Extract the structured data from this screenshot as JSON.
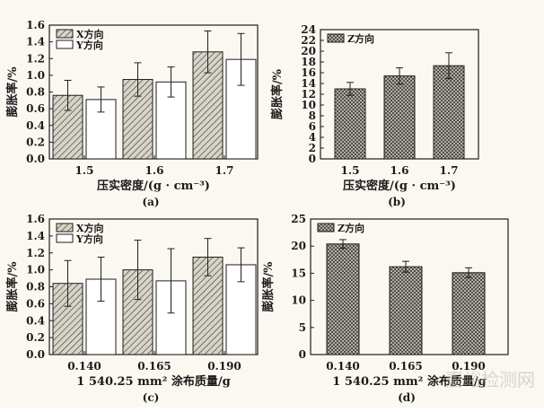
{
  "chart_data": [
    {
      "id": "a",
      "type": "bar",
      "panel_label": "(a)",
      "categories": [
        "1.5",
        "1.6",
        "1.7"
      ],
      "series": [
        {
          "name": "X方向",
          "values": [
            0.76,
            0.95,
            1.28
          ],
          "errors": [
            0.18,
            0.2,
            0.25
          ],
          "pattern": "hatch"
        },
        {
          "name": "Y方向",
          "values": [
            0.71,
            0.92,
            1.19
          ],
          "errors": [
            0.15,
            0.18,
            0.31
          ],
          "pattern": "blank"
        }
      ],
      "xlabel": "压实密度/(g · cm⁻³)",
      "ylabel": "膨胀率/%",
      "ylim": [
        0,
        1.6
      ],
      "yticks": [
        "0.0",
        "0.2",
        "0.4",
        "0.6",
        "0.8",
        "1.0",
        "1.2",
        "1.4",
        "1.6"
      ],
      "legend_position": "top-left",
      "grid": false
    },
    {
      "id": "b",
      "type": "bar",
      "panel_label": "(b)",
      "categories": [
        "1.5",
        "1.6",
        "1.7"
      ],
      "series": [
        {
          "name": "Z方向",
          "values": [
            13.0,
            15.4,
            17.3
          ],
          "errors": [
            1.2,
            1.5,
            2.4
          ],
          "pattern": "crosshatch"
        }
      ],
      "xlabel": "压实密度/(g · cm⁻³)",
      "ylabel": "膨胀率/%",
      "ylim": [
        0,
        24
      ],
      "yticks": [
        "0",
        "2",
        "4",
        "6",
        "8",
        "10",
        "12",
        "14",
        "16",
        "18",
        "20",
        "22",
        "24"
      ],
      "legend_position": "top-left",
      "grid": false
    },
    {
      "id": "c",
      "type": "bar",
      "panel_label": "(c)",
      "categories": [
        "0.140",
        "0.165",
        "0.190"
      ],
      "series": [
        {
          "name": "X方向",
          "values": [
            0.84,
            1.0,
            1.15
          ],
          "errors": [
            0.27,
            0.35,
            0.22
          ],
          "pattern": "hatch"
        },
        {
          "name": "Y方向",
          "values": [
            0.89,
            0.87,
            1.06
          ],
          "errors": [
            0.26,
            0.38,
            0.2
          ],
          "pattern": "blank"
        }
      ],
      "xlabel": "1 540.25 mm² 涂布质量/g",
      "ylabel": "膨胀率/%",
      "ylim": [
        0,
        1.6
      ],
      "yticks": [
        "0.0",
        "0.2",
        "0.4",
        "0.6",
        "0.8",
        "1.0",
        "1.2",
        "1.4",
        "1.6"
      ],
      "legend_position": "top-left",
      "grid": false
    },
    {
      "id": "d",
      "type": "bar",
      "panel_label": "(d)",
      "categories": [
        "0.140",
        "0.165",
        "0.190"
      ],
      "series": [
        {
          "name": "Z方向",
          "values": [
            20.4,
            16.2,
            15.1
          ],
          "errors": [
            0.8,
            1.0,
            0.9
          ],
          "pattern": "crosshatch"
        }
      ],
      "xlabel": "1 540.25 mm² 涂布质量/g",
      "ylabel": "膨胀率/%",
      "ylim": [
        0,
        25
      ],
      "yticks": [
        "0",
        "5",
        "10",
        "15",
        "20",
        "25"
      ],
      "legend_position": "top-left",
      "grid": false
    }
  ],
  "watermark": "嘉峪检测网",
  "colors": {
    "panel_bg": "#fbf8f1",
    "hatch_fill": "#d8d4c8",
    "line": "#1e1e1e"
  }
}
